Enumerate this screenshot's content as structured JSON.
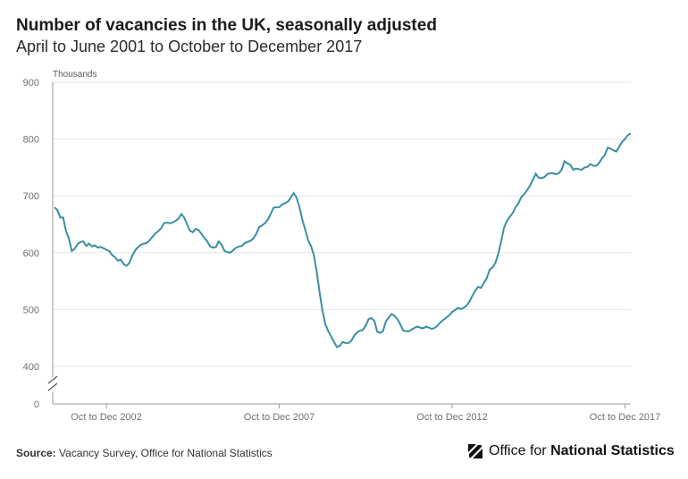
{
  "header": {
    "title": "Number of vacancies in the UK, seasonally adjusted",
    "subtitle": "April to June 2001 to October to December 2017"
  },
  "footer": {
    "source_label": "Source:",
    "source_text": "Vacancy Survey, Office for National Statistics",
    "logo_text_regular": "Office for",
    "logo_text_bold": "National Statistics",
    "logo_icon": "ons-logo-icon"
  },
  "colors": {
    "line": "#3a8fa3",
    "grid": "#e6e6e6",
    "axis": "#9a9a9a"
  },
  "chart_data": {
    "type": "line",
    "title": "Number of vacancies in the UK, seasonally adjusted",
    "subtitle": "April to June 2001 to October to December 2017",
    "ylabel": "Thousands",
    "ylim": [
      400,
      900
    ],
    "y_ticks": [
      0,
      400,
      500,
      600,
      700,
      800,
      900
    ],
    "y_axis_break": true,
    "grid": true,
    "x_tick_labels": [
      "Oct to Dec 2002",
      "Oct to Dec 2007",
      "Oct to Dec 2012",
      "Oct to Dec 2017"
    ],
    "x_tick_index": [
      18,
      78,
      138,
      198
    ],
    "series": [
      {
        "values": [
          680,
          675,
          662,
          662,
          638,
          625,
          603,
          607,
          615,
          619,
          620,
          612,
          616,
          611,
          613,
          609,
          610,
          608,
          605,
          603,
          596,
          592,
          586,
          588,
          580,
          577,
          582,
          595,
          604,
          610,
          614,
          616,
          617,
          622,
          628,
          634,
          638,
          643,
          652,
          653,
          652,
          653,
          656,
          660,
          668,
          662,
          650,
          639,
          636,
          642,
          640,
          633,
          626,
          620,
          611,
          609,
          610,
          620,
          614,
          603,
          601,
          600,
          604,
          609,
          611,
          612,
          617,
          619,
          621,
          625,
          633,
          645,
          648,
          652,
          658,
          668,
          679,
          680,
          680,
          685,
          687,
          690,
          697,
          705,
          697,
          680,
          658,
          641,
          622,
          612,
          596,
          567,
          530,
          498,
          474,
          462,
          453,
          443,
          434,
          436,
          443,
          441,
          441,
          445,
          454,
          460,
          463,
          464,
          472,
          483,
          485,
          480,
          461,
          459,
          462,
          479,
          486,
          492,
          489,
          483,
          474,
          463,
          462,
          462,
          465,
          468,
          470,
          468,
          467,
          470,
          468,
          466,
          468,
          472,
          478,
          482,
          486,
          490,
          496,
          499,
          503,
          501,
          503,
          507,
          514,
          524,
          533,
          540,
          538,
          547,
          555,
          570,
          574,
          582,
          598,
          620,
          644,
          656,
          663,
          670,
          680,
          687,
          698,
          703,
          710,
          718,
          728,
          739,
          732,
          731,
          733,
          738,
          740,
          740,
          738,
          740,
          746,
          761,
          757,
          755,
          746,
          748,
          747,
          746,
          750,
          751,
          756,
          753,
          753,
          758,
          766,
          772,
          785,
          783,
          780,
          778,
          787,
          795,
          800,
          807,
          810
        ]
      }
    ]
  }
}
